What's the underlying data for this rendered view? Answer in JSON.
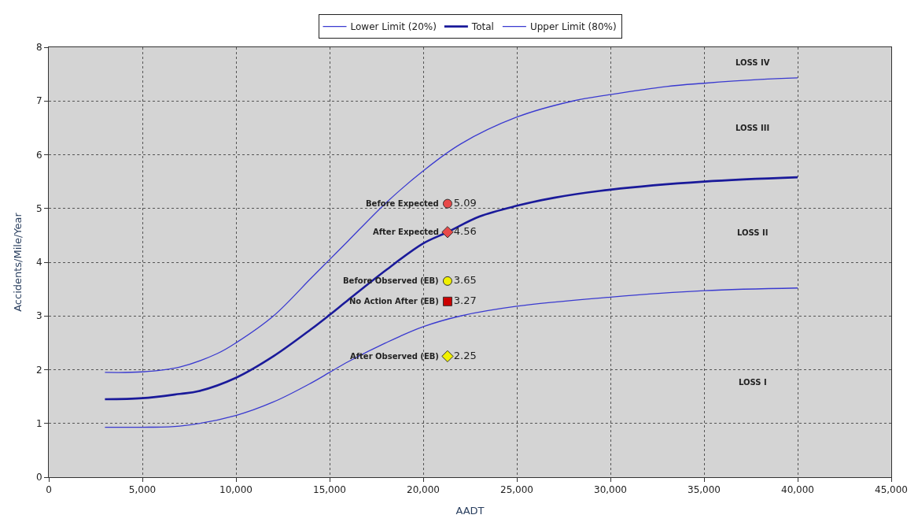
{
  "chart_data": {
    "type": "line",
    "xlabel": "AADT",
    "ylabel": "Accidents/Mile/Year",
    "xlim": [
      0,
      45000
    ],
    "ylim": [
      0,
      8
    ],
    "xticks": [
      {
        "value": 0,
        "label": "0"
      },
      {
        "value": 5000,
        "label": "5,000"
      },
      {
        "value": 10000,
        "label": "10,000"
      },
      {
        "value": 15000,
        "label": "15,000"
      },
      {
        "value": 20000,
        "label": "20,000"
      },
      {
        "value": 25000,
        "label": "25,000"
      },
      {
        "value": 30000,
        "label": "30,000"
      },
      {
        "value": 35000,
        "label": "35,000"
      },
      {
        "value": 40000,
        "label": "40,000"
      },
      {
        "value": 45000,
        "label": "45,000"
      }
    ],
    "yticks": [
      0,
      1,
      2,
      3,
      4,
      5,
      6,
      7,
      8
    ],
    "grid": true,
    "legend": "top",
    "marker": "none",
    "line_style": "solid",
    "series": [
      {
        "name": "Lower Limit (20%)",
        "color": "#3a3ad0",
        "x": [
          3000,
          5000,
          7000,
          10000,
          12000,
          14000,
          15000,
          16000,
          18000,
          20000,
          22000,
          25000,
          30000,
          35000,
          40000
        ],
        "values": [
          0.93,
          0.93,
          0.95,
          1.15,
          1.4,
          1.75,
          1.95,
          2.15,
          2.5,
          2.8,
          3.0,
          3.18,
          3.35,
          3.47,
          3.52
        ]
      },
      {
        "name": "Total",
        "color": "#1a1a9a",
        "x": [
          3000,
          5000,
          7000,
          8000,
          10000,
          12000,
          14000,
          15000,
          16000,
          18000,
          20000,
          21300,
          23000,
          25000,
          27000,
          30000,
          35000,
          40000
        ],
        "values": [
          1.45,
          1.47,
          1.55,
          1.6,
          1.85,
          2.25,
          2.75,
          3.02,
          3.3,
          3.85,
          4.35,
          4.56,
          4.85,
          5.05,
          5.2,
          5.35,
          5.5,
          5.58
        ]
      },
      {
        "name": "Upper Limit (80%)",
        "color": "#3a3ad0",
        "x": [
          3000,
          5000,
          7000,
          9000,
          10000,
          12000,
          14000,
          15000,
          16000,
          18000,
          20000,
          22000,
          25000,
          28000,
          30000,
          33000,
          35000,
          38000,
          40000
        ],
        "values": [
          1.95,
          1.96,
          2.05,
          2.3,
          2.5,
          3.0,
          3.7,
          4.05,
          4.4,
          5.1,
          5.7,
          6.2,
          6.7,
          7.0,
          7.12,
          7.27,
          7.33,
          7.4,
          7.43
        ]
      },
      {
        "type": "scatter",
        "name": "Before Expected",
        "marker": "circle",
        "color": "#e84a4a",
        "x": [
          21300
        ],
        "values": [
          5.09
        ],
        "value_labels": [
          "5.09"
        ]
      },
      {
        "type": "scatter",
        "name": "After Expected",
        "marker": "diamond",
        "color": "#e84a4a",
        "x": [
          21300
        ],
        "values": [
          4.56
        ],
        "value_labels": [
          "4.56"
        ]
      },
      {
        "type": "scatter",
        "name": "Before Observed (EB)",
        "marker": "circle",
        "color": "#f0f000",
        "x": [
          21300
        ],
        "values": [
          3.65
        ],
        "value_labels": [
          "3.65"
        ]
      },
      {
        "type": "scatter",
        "name": "No Action After (EB)",
        "marker": "square",
        "color": "#cc0000",
        "x": [
          21300
        ],
        "values": [
          3.27
        ],
        "value_labels": [
          "3.27"
        ]
      },
      {
        "type": "scatter",
        "name": "After Observed (EB)",
        "marker": "diamond",
        "color": "#f0f000",
        "x": [
          21300
        ],
        "values": [
          2.25
        ],
        "value_labels": [
          "2.25"
        ]
      }
    ],
    "annotations": [
      "LOSS IV",
      "LOSS III",
      "LOSS II",
      "LOSS I"
    ]
  }
}
